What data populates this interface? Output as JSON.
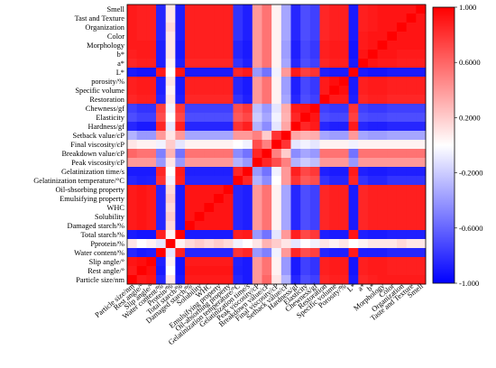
{
  "chart_data": {
    "type": "heatmap",
    "title": "",
    "xlabel": "",
    "ylabel": "",
    "colorscale": {
      "low": "#0000ff",
      "mid": "#ffffff",
      "high": "#ff0000"
    },
    "colorbar": {
      "range": [
        -1.0,
        1.0
      ],
      "ticks": [
        1.0,
        0.6,
        0.2,
        -0.2,
        -0.6,
        -1.0
      ],
      "tick_labels": [
        "1.000",
        "0.6000",
        "0.2000",
        "-0.2000",
        "-0.6000",
        "-1.000"
      ]
    },
    "variables": [
      "Particle size/nm",
      "Rest angle/°",
      "Slip angle/°",
      "Water content/%",
      "Pprotein/%",
      "Total starch/%",
      "Damaged starch/%",
      "Solubility",
      "WHC",
      "Emulsifying property",
      "Oil-absorbing property",
      "Gelatinization temperature/°C",
      "Gelatinization time/s",
      "Peak viscosity/cP",
      "Breakdown value/cP",
      "Final viscosity/cP",
      "Setback value/cP",
      "Hardness/gf",
      "Elasticity",
      "Chewness/gf",
      "Restoration",
      "Specific volume",
      "porosity/%",
      "L*",
      "a*",
      "b*",
      "Morphology",
      "Color",
      "Organization",
      "Tast and Texture",
      "Smell"
    ],
    "x_labels": [
      "Particle size/nm",
      "Rest angle/°",
      "Slip angle/°",
      "Water content/%",
      "Protein/%",
      "Total starch/%",
      "Damaged starch/%",
      "Solubility",
      "WHC",
      "Emulsifying property",
      "Oil-absorbing property",
      "Gelatinization temperature/°C",
      "Gelatinization time/s",
      "Peak viscosity/cP",
      "Breakdown value/cP",
      "Final viscosity/cP",
      "Setback value/cP",
      "Hardness/gf",
      "Elasticity",
      "Chewness/gf",
      "Restoration",
      "Specific volume",
      "Porosity/%",
      "L*",
      "a*",
      "b*",
      "Morphology",
      "Color",
      "Organization",
      "Taste and Texture",
      "Smell"
    ],
    "y_labels_top_to_bottom": [
      "Smell",
      "Tast and Texture",
      "Organization",
      "Color",
      "Morphology",
      "b*",
      "a*",
      "L*",
      "porosity/%",
      "Specific volume",
      "Restoration",
      "Chewness/gf",
      "Elasticity",
      "Hardness/gf",
      "Setback value/cP",
      "Final viscosity/cP",
      "Breakdown value/cP",
      "Peak viscosity/cP",
      "Gelatinization time/s",
      "Gelatinization temperature/°C",
      "Oil-sbsorbing property",
      "Emulsifying property",
      "WHC",
      "Solubility",
      "Damaged starch/%",
      "Total starch/%",
      "Pprotein/%",
      "Water content/%",
      "Slip angle/°",
      "Rest angle/°",
      "Particle size/nm"
    ],
    "matrix": [
      [
        1.0,
        0.9,
        0.92,
        -0.85,
        0.1,
        -0.9,
        0.9,
        0.9,
        0.9,
        0.9,
        0.9,
        -0.85,
        -0.9,
        0.4,
        0.6,
        0.1,
        -0.3,
        -0.85,
        -0.7,
        -0.75,
        0.85,
        0.88,
        0.88,
        -0.9,
        0.85,
        0.88,
        0.9,
        0.9,
        0.9,
        0.9,
        0.9
      ],
      [
        0.9,
        1.0,
        0.95,
        -0.9,
        0.0,
        -0.92,
        0.92,
        0.92,
        0.92,
        0.92,
        0.92,
        -0.88,
        -0.9,
        0.4,
        0.55,
        0.05,
        -0.4,
        -0.9,
        -0.75,
        -0.8,
        0.88,
        0.9,
        0.9,
        -0.92,
        0.88,
        0.9,
        0.9,
        0.88,
        0.88,
        0.88,
        0.88
      ],
      [
        0.92,
        0.95,
        1.0,
        -0.88,
        0.05,
        -0.92,
        0.9,
        0.9,
        0.9,
        0.9,
        0.9,
        -0.87,
        -0.9,
        0.4,
        0.55,
        0.05,
        -0.4,
        -0.9,
        -0.75,
        -0.8,
        0.88,
        0.9,
        0.9,
        -0.92,
        0.88,
        0.9,
        0.9,
        0.88,
        0.88,
        0.88,
        0.88
      ],
      [
        -0.85,
        -0.9,
        -0.88,
        1.0,
        -0.1,
        0.88,
        -0.85,
        -0.85,
        -0.85,
        -0.85,
        -0.85,
        0.8,
        0.85,
        -0.4,
        -0.5,
        -0.05,
        0.4,
        0.85,
        0.7,
        0.75,
        -0.85,
        -0.88,
        -0.88,
        0.9,
        -0.88,
        -0.88,
        -0.88,
        -0.85,
        -0.85,
        -0.85,
        -0.85
      ],
      [
        0.1,
        0.0,
        0.05,
        -0.1,
        1.0,
        0.05,
        0.15,
        0.2,
        0.15,
        0.2,
        0.15,
        -0.05,
        0.0,
        0.1,
        0.3,
        0.2,
        0.1,
        -0.1,
        0.0,
        -0.05,
        0.1,
        0.05,
        0.1,
        0.0,
        0.05,
        0.1,
        0.1,
        0.1,
        0.15,
        0.1,
        0.1
      ],
      [
        -0.9,
        -0.92,
        -0.92,
        0.88,
        0.05,
        1.0,
        -0.9,
        -0.9,
        -0.9,
        -0.9,
        -0.9,
        0.88,
        0.9,
        -0.4,
        -0.55,
        -0.1,
        0.4,
        0.88,
        0.72,
        0.78,
        -0.88,
        -0.9,
        -0.9,
        0.92,
        -0.88,
        -0.9,
        -0.9,
        -0.88,
        -0.88,
        -0.88,
        -0.88
      ],
      [
        0.9,
        0.92,
        0.9,
        -0.85,
        0.15,
        -0.9,
        1.0,
        0.92,
        0.92,
        0.92,
        0.92,
        -0.85,
        -0.88,
        0.4,
        0.55,
        0.05,
        -0.35,
        -0.85,
        -0.7,
        -0.75,
        0.85,
        0.88,
        0.88,
        -0.9,
        0.85,
        0.88,
        0.88,
        0.88,
        0.88,
        0.88,
        0.88
      ],
      [
        0.9,
        0.92,
        0.9,
        -0.85,
        0.2,
        -0.9,
        0.92,
        1.0,
        0.92,
        0.92,
        0.92,
        -0.85,
        -0.88,
        0.4,
        0.55,
        0.05,
        -0.35,
        -0.85,
        -0.7,
        -0.75,
        0.85,
        0.88,
        0.88,
        -0.9,
        0.85,
        0.88,
        0.88,
        0.88,
        0.88,
        0.88,
        0.88
      ],
      [
        0.9,
        0.92,
        0.9,
        -0.85,
        0.15,
        -0.9,
        0.92,
        0.92,
        1.0,
        0.92,
        0.92,
        -0.85,
        -0.88,
        0.4,
        0.55,
        0.05,
        -0.35,
        -0.85,
        -0.7,
        -0.75,
        0.85,
        0.88,
        0.88,
        -0.9,
        0.85,
        0.88,
        0.88,
        0.88,
        0.88,
        0.88,
        0.88
      ],
      [
        0.9,
        0.92,
        0.9,
        -0.85,
        0.2,
        -0.9,
        0.92,
        0.92,
        0.92,
        1.0,
        0.92,
        -0.85,
        -0.88,
        0.4,
        0.55,
        0.05,
        -0.35,
        -0.85,
        -0.7,
        -0.75,
        0.85,
        0.88,
        0.88,
        -0.9,
        0.85,
        0.88,
        0.88,
        0.88,
        0.88,
        0.88,
        0.88
      ],
      [
        0.9,
        0.92,
        0.9,
        -0.85,
        0.15,
        -0.9,
        0.92,
        0.92,
        0.92,
        0.92,
        1.0,
        -0.85,
        -0.88,
        0.4,
        0.55,
        0.05,
        -0.35,
        -0.85,
        -0.7,
        -0.75,
        0.85,
        0.88,
        0.88,
        -0.9,
        0.85,
        0.88,
        0.88,
        0.88,
        0.88,
        0.88,
        0.88
      ],
      [
        -0.85,
        -0.88,
        -0.87,
        0.8,
        -0.05,
        0.88,
        -0.85,
        -0.85,
        -0.85,
        -0.85,
        -0.85,
        1.0,
        0.85,
        -0.3,
        -0.45,
        0.0,
        0.4,
        0.8,
        0.65,
        0.7,
        -0.8,
        -0.85,
        -0.85,
        0.85,
        -0.8,
        -0.85,
        -0.85,
        -0.8,
        -0.8,
        -0.8,
        -0.8
      ],
      [
        -0.9,
        -0.9,
        -0.9,
        0.85,
        0.0,
        0.9,
        -0.88,
        -0.88,
        -0.88,
        -0.88,
        -0.88,
        0.85,
        1.0,
        -0.4,
        -0.55,
        -0.05,
        0.4,
        0.88,
        0.72,
        0.78,
        -0.88,
        -0.9,
        -0.9,
        0.9,
        -0.88,
        -0.9,
        -0.9,
        -0.88,
        -0.88,
        -0.88,
        -0.88
      ],
      [
        0.4,
        0.4,
        0.4,
        -0.4,
        0.1,
        -0.4,
        0.4,
        0.4,
        0.4,
        0.4,
        0.4,
        -0.3,
        -0.4,
        1.0,
        0.85,
        0.7,
        0.5,
        -0.3,
        -0.2,
        -0.25,
        0.4,
        0.4,
        0.4,
        -0.4,
        0.4,
        0.4,
        0.4,
        0.4,
        0.4,
        0.4,
        0.4
      ],
      [
        0.6,
        0.55,
        0.55,
        -0.5,
        0.3,
        -0.55,
        0.55,
        0.55,
        0.55,
        0.55,
        0.55,
        -0.45,
        -0.55,
        0.85,
        1.0,
        0.5,
        0.2,
        -0.45,
        -0.35,
        -0.4,
        0.55,
        0.55,
        0.55,
        -0.55,
        0.55,
        0.55,
        0.55,
        0.55,
        0.55,
        0.55,
        0.55
      ],
      [
        0.1,
        0.05,
        0.05,
        -0.05,
        0.2,
        -0.1,
        0.05,
        0.05,
        0.05,
        0.05,
        0.05,
        0.0,
        -0.05,
        0.7,
        0.5,
        1.0,
        0.8,
        -0.1,
        -0.05,
        -0.1,
        0.05,
        0.05,
        0.05,
        -0.05,
        0.05,
        0.05,
        0.05,
        0.05,
        0.05,
        0.05,
        0.05
      ],
      [
        -0.3,
        -0.4,
        -0.4,
        0.4,
        0.1,
        0.4,
        -0.35,
        -0.35,
        -0.35,
        -0.35,
        -0.35,
        0.4,
        0.4,
        0.5,
        0.2,
        0.8,
        1.0,
        0.35,
        0.3,
        0.32,
        -0.35,
        -0.38,
        -0.38,
        0.4,
        -0.35,
        -0.38,
        -0.38,
        -0.35,
        -0.35,
        -0.35,
        -0.35
      ],
      [
        -0.85,
        -0.9,
        -0.9,
        0.85,
        -0.1,
        0.88,
        -0.85,
        -0.85,
        -0.85,
        -0.85,
        -0.85,
        0.8,
        0.88,
        -0.3,
        -0.45,
        -0.1,
        0.35,
        1.0,
        0.85,
        0.9,
        -0.85,
        -0.88,
        -0.88,
        0.9,
        -0.85,
        -0.88,
        -0.88,
        -0.85,
        -0.85,
        -0.85,
        -0.85
      ],
      [
        -0.7,
        -0.75,
        -0.75,
        0.7,
        0.0,
        0.72,
        -0.7,
        -0.7,
        -0.7,
        -0.7,
        -0.7,
        0.65,
        0.72,
        -0.2,
        -0.35,
        -0.05,
        0.3,
        0.85,
        1.0,
        0.92,
        -0.7,
        -0.72,
        -0.72,
        0.75,
        -0.7,
        -0.72,
        -0.72,
        -0.7,
        -0.7,
        -0.7,
        -0.7
      ],
      [
        -0.75,
        -0.8,
        -0.8,
        0.75,
        -0.05,
        0.78,
        -0.75,
        -0.75,
        -0.75,
        -0.75,
        -0.75,
        0.7,
        0.78,
        -0.25,
        -0.4,
        -0.1,
        0.32,
        0.9,
        0.92,
        1.0,
        -0.75,
        -0.78,
        -0.78,
        0.8,
        -0.75,
        -0.78,
        -0.78,
        -0.75,
        -0.75,
        -0.75,
        -0.75
      ],
      [
        0.85,
        0.88,
        0.88,
        -0.85,
        0.1,
        -0.88,
        0.85,
        0.85,
        0.85,
        0.85,
        0.85,
        -0.8,
        -0.88,
        0.4,
        0.55,
        0.05,
        -0.35,
        -0.85,
        -0.7,
        -0.75,
        1.0,
        0.9,
        0.9,
        -0.88,
        0.85,
        0.88,
        0.88,
        0.85,
        0.85,
        0.85,
        0.85
      ],
      [
        0.88,
        0.9,
        0.9,
        -0.88,
        0.05,
        -0.9,
        0.88,
        0.88,
        0.88,
        0.88,
        0.88,
        -0.85,
        -0.9,
        0.4,
        0.55,
        0.05,
        -0.38,
        -0.88,
        -0.72,
        -0.78,
        0.9,
        1.0,
        0.95,
        -0.9,
        0.88,
        0.9,
        0.9,
        0.88,
        0.88,
        0.88,
        0.88
      ],
      [
        0.88,
        0.9,
        0.9,
        -0.88,
        0.1,
        -0.9,
        0.88,
        0.88,
        0.88,
        0.88,
        0.88,
        -0.85,
        -0.9,
        0.4,
        0.55,
        0.05,
        -0.38,
        -0.88,
        -0.72,
        -0.78,
        0.9,
        0.95,
        1.0,
        -0.9,
        0.88,
        0.9,
        0.9,
        0.88,
        0.88,
        0.88,
        0.88
      ],
      [
        -0.9,
        -0.92,
        -0.92,
        0.9,
        0.0,
        0.92,
        -0.9,
        -0.9,
        -0.9,
        -0.9,
        -0.9,
        0.85,
        0.9,
        -0.4,
        -0.55,
        -0.05,
        0.4,
        0.9,
        0.75,
        0.8,
        -0.88,
        -0.9,
        -0.9,
        1.0,
        -0.9,
        -0.92,
        -0.92,
        -0.9,
        -0.9,
        -0.9,
        -0.9
      ],
      [
        0.85,
        0.88,
        0.88,
        -0.88,
        0.05,
        -0.88,
        0.85,
        0.85,
        0.85,
        0.85,
        0.85,
        -0.8,
        -0.88,
        0.4,
        0.55,
        0.05,
        -0.35,
        -0.85,
        -0.7,
        -0.75,
        0.85,
        0.88,
        0.88,
        -0.9,
        1.0,
        0.92,
        0.9,
        0.9,
        0.88,
        0.88,
        0.88
      ],
      [
        0.88,
        0.9,
        0.9,
        -0.88,
        0.1,
        -0.9,
        0.88,
        0.88,
        0.88,
        0.88,
        0.88,
        -0.85,
        -0.9,
        0.4,
        0.55,
        0.05,
        -0.38,
        -0.88,
        -0.72,
        -0.78,
        0.88,
        0.9,
        0.9,
        -0.92,
        0.92,
        1.0,
        0.92,
        0.92,
        0.9,
        0.9,
        0.9
      ],
      [
        0.9,
        0.9,
        0.9,
        -0.88,
        0.1,
        -0.9,
        0.88,
        0.88,
        0.88,
        0.88,
        0.88,
        -0.85,
        -0.9,
        0.4,
        0.55,
        0.05,
        -0.38,
        -0.88,
        -0.72,
        -0.78,
        0.88,
        0.9,
        0.9,
        -0.92,
        0.9,
        0.92,
        1.0,
        0.92,
        0.92,
        0.92,
        0.92
      ],
      [
        0.9,
        0.88,
        0.88,
        -0.85,
        0.1,
        -0.88,
        0.88,
        0.88,
        0.88,
        0.88,
        0.88,
        -0.8,
        -0.88,
        0.4,
        0.55,
        0.05,
        -0.35,
        -0.85,
        -0.7,
        -0.75,
        0.85,
        0.88,
        0.88,
        -0.9,
        0.9,
        0.92,
        0.92,
        1.0,
        0.92,
        0.92,
        0.92
      ],
      [
        0.9,
        0.88,
        0.88,
        -0.85,
        0.15,
        -0.88,
        0.88,
        0.88,
        0.88,
        0.88,
        0.88,
        -0.8,
        -0.88,
        0.4,
        0.55,
        0.05,
        -0.35,
        -0.85,
        -0.7,
        -0.75,
        0.85,
        0.88,
        0.88,
        -0.9,
        0.88,
        0.9,
        0.92,
        0.92,
        1.0,
        0.92,
        0.92
      ],
      [
        0.9,
        0.88,
        0.88,
        -0.85,
        0.1,
        -0.88,
        0.88,
        0.88,
        0.88,
        0.88,
        0.88,
        -0.8,
        -0.88,
        0.4,
        0.55,
        0.05,
        -0.35,
        -0.85,
        -0.7,
        -0.75,
        0.85,
        0.88,
        0.88,
        -0.9,
        0.88,
        0.9,
        0.92,
        0.92,
        0.92,
        1.0,
        0.92
      ],
      [
        0.9,
        0.88,
        0.88,
        -0.85,
        0.1,
        -0.88,
        0.88,
        0.88,
        0.88,
        0.88,
        0.88,
        -0.8,
        -0.88,
        0.4,
        0.55,
        0.05,
        -0.35,
        -0.85,
        -0.7,
        -0.75,
        0.85,
        0.88,
        0.88,
        -0.9,
        0.88,
        0.9,
        0.92,
        0.92,
        0.92,
        0.92,
        1.0
      ]
    ]
  }
}
